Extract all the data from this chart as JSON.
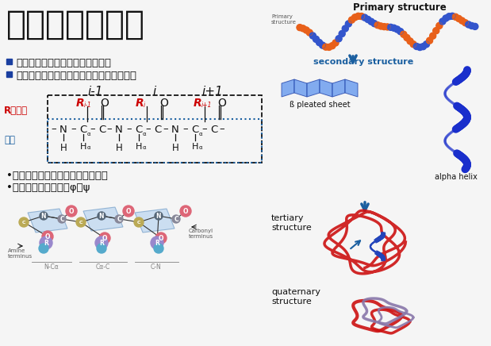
{
  "title": "蛋白质结构层次",
  "bullet1": "氨基酸通过肽键形成的生物高分子",
  "bullet2": "一级结构、二级结构、三级结构、四级结构",
  "index_i_minus1": "i-1",
  "index_i": "i",
  "index_i_plus1": "i+1",
  "R_side_chain": "R：侧链",
  "main_chain": "主链",
  "note1": "•肽键具有双键性质而不能任意旋转",
  "note2": "•主链可旋转的二面角φ，ψ",
  "primary_structure": "Primary structure",
  "primary_structure_small": "Primary\nstructure",
  "secondary_structure": "secondary structure",
  "beta_sheet": "ß pleated sheet",
  "alpha_helix": "alpha helix",
  "tertiary_structure": "tertiary\nstructure",
  "quaternary_structure": "quaternary\nstructure",
  "amine_terminus": "Amine\nterminus",
  "carbonyl_terminus": "Carbonyl\nterminus",
  "n_ca_label": "N-Cα",
  "ca_c_label": "Cα-C",
  "c_n_label": "C-N",
  "bg_color": "#f5f5f5",
  "title_color": "#111111",
  "bullet_sq_color": "#1a3fa0",
  "R_color": "#cc0000",
  "chain_color": "#000000",
  "dashed_box_color": "#000000",
  "dotted_box_color": "#1a5fa0",
  "arrow_color": "#1a5fa0",
  "right_label_color": "#1a5fa0",
  "bead_orange": "#e8601a",
  "bead_blue": "#3355cc",
  "helix_color": "#1a2fcc",
  "tertiary_color": "#cc1111",
  "quaternary_red": "#cc1111",
  "quaternary_purple": "#8877aa"
}
